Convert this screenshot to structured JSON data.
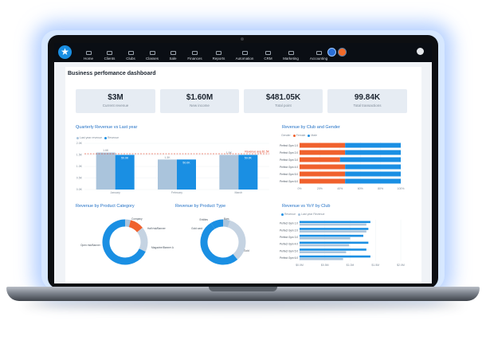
{
  "app": {
    "nav_items": [
      {
        "label": "Home"
      },
      {
        "label": "Clients"
      },
      {
        "label": "Clubs"
      },
      {
        "label": "Classes"
      },
      {
        "label": "Sale"
      },
      {
        "label": "Finances"
      },
      {
        "label": "Reports"
      },
      {
        "label": "Automation"
      },
      {
        "label": "CRM"
      },
      {
        "label": "Marketing"
      },
      {
        "label": "Accounting"
      }
    ],
    "accent": "#1a8fe3"
  },
  "dashboard": {
    "title": "Business perfomance dashboard",
    "kpis": [
      {
        "value": "$3M",
        "label": "Current revenue"
      },
      {
        "value": "$1.60M",
        "label": "New income"
      },
      {
        "value": "$481.05K",
        "label": "Total point"
      },
      {
        "value": "99.84K",
        "label": "Total transactions"
      }
    ]
  },
  "colors": {
    "blue": "#1a8fe3",
    "light_blue": "#aac4dc",
    "orange": "#f0612d",
    "grey_blue": "#c5d3e2"
  },
  "chart_data": [
    {
      "id": "quarterly",
      "type": "bar",
      "title": "Quarterly Revenue vs Last year",
      "legend": [
        "Last year revenue",
        "Revenue"
      ],
      "categories": [
        "January",
        "February",
        "March"
      ],
      "series": [
        {
          "name": "Last year revenue",
          "values": [
            1.6,
            1.3,
            1.5
          ]
        },
        {
          "name": "Revenue",
          "values": [
            1.5,
            1.3,
            1.5
          ]
        }
      ],
      "data_labels_top": [
        "1.6K",
        "1.3K",
        "1.5K"
      ],
      "data_labels_bar": [
        "50.0K",
        "50.0K",
        "50.0K"
      ],
      "y_ticks": [
        "2.0K",
        "1.5K",
        "1.0K",
        "0.5K",
        "0.0K"
      ],
      "ylim": [
        0,
        2
      ],
      "target_label": "Revenue avg $1.5K",
      "target_value": 1.55
    },
    {
      "id": "club_gender",
      "type": "bar",
      "title": "Revenue by Club and Gender",
      "legend_title": "Gender",
      "legend": [
        "Female",
        "Male"
      ],
      "categories": [
        "Perfect Gym 1.0",
        "Perfect Gym 2.0",
        "Perfect Gym 3.0",
        "Perfect Gym 4.0",
        "Perfect Gym 5.0",
        "Perfect Gym 6.0"
      ],
      "series": [
        {
          "name": "Female",
          "values": [
            45,
            45,
            40,
            45,
            45,
            45
          ]
        },
        {
          "name": "Male",
          "values": [
            55,
            55,
            60,
            55,
            55,
            55
          ]
        }
      ],
      "x_ticks": [
        "0%",
        "20%",
        "40%",
        "60%",
        "80%",
        "100%"
      ],
      "xlim": [
        0,
        100
      ]
    },
    {
      "id": "product_category",
      "type": "pie",
      "title": "Revenue by Product Category",
      "labels": [
        "Company",
        "Half risk/Banner",
        "Magazine/Banner A",
        "Open risk/Banner"
      ],
      "values": [
        4,
        10,
        18,
        68
      ]
    },
    {
      "id": "product_type",
      "type": "pie",
      "title": "Revenue by Product Type",
      "labels": [
        "Bars",
        "Gold card",
        "Gold",
        "Entities"
      ],
      "values": [
        5,
        34,
        52,
        9
      ]
    },
    {
      "id": "club_yoy",
      "type": "bar",
      "title": "Revenue vs YoY by Club",
      "legend": [
        "Revenue",
        "Last year Revenue"
      ],
      "categories": [
        "Perfect Gym 1.0",
        "Perfect Gym 2.0",
        "Perfect Gym 3.0",
        "Perfect Gym 4.0",
        "Perfect Gym 5.0",
        "Perfect Gym 6.0"
      ],
      "series": [
        {
          "name": "Revenue",
          "values": [
            70,
            68,
            63,
            68,
            66,
            70
          ]
        },
        {
          "name": "Last year Revenue",
          "values": [
            66,
            66,
            50,
            49,
            46,
            43
          ]
        }
      ],
      "x_ticks": [
        "$0.0M",
        "$0.5M",
        "$1.0M",
        "$1.5M",
        "$2.0M"
      ],
      "xlim": [
        0,
        100
      ]
    }
  ]
}
